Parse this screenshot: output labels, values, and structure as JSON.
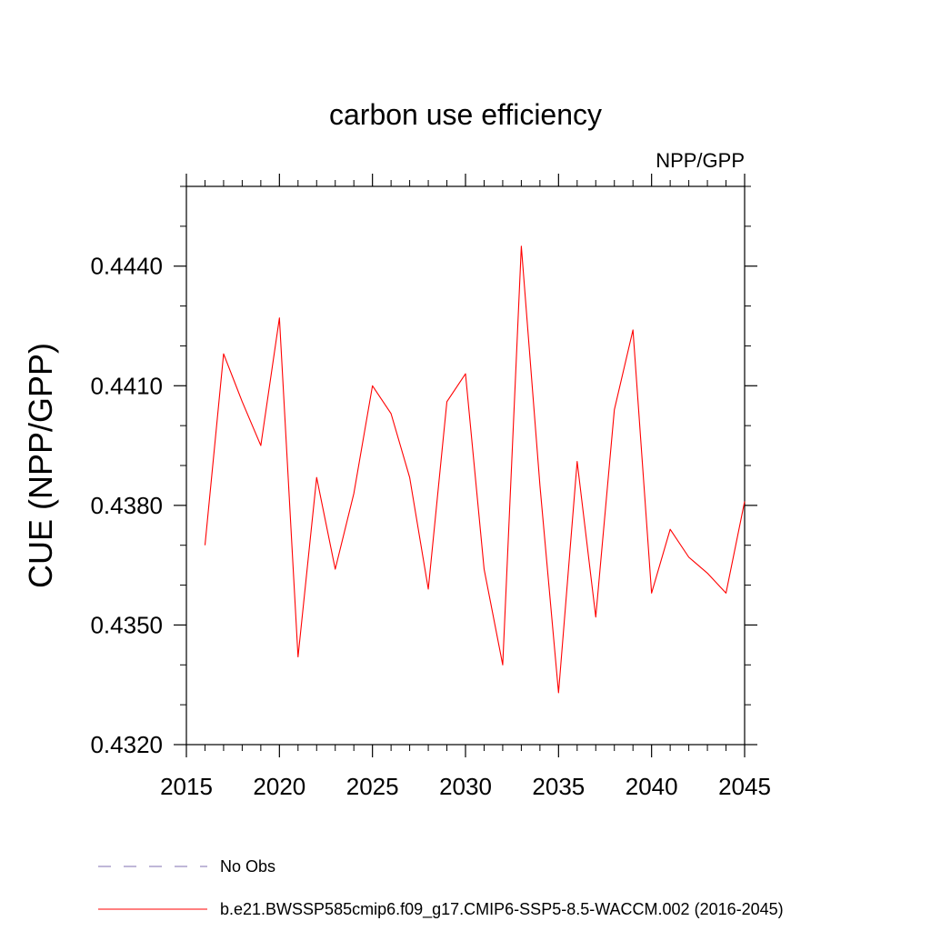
{
  "chart_data": {
    "type": "line",
    "title": "carbon use efficiency",
    "subtitle": "NPP/GPP",
    "xlabel": "",
    "ylabel": "CUE  (NPP/GPP)",
    "xlim": [
      2015,
      2045
    ],
    "ylim": [
      0.432,
      0.446
    ],
    "x_ticks": [
      2015,
      2020,
      2025,
      2030,
      2035,
      2040,
      2045
    ],
    "x_tick_labels": [
      "2015",
      "2020",
      "2025",
      "2030",
      "2035",
      "2040",
      "2045"
    ],
    "y_ticks": [
      0.432,
      0.435,
      0.438,
      0.441,
      0.444
    ],
    "y_tick_labels": [
      "0.4320",
      "0.4350",
      "0.4380",
      "0.4410",
      "0.4440"
    ],
    "grid": false,
    "legend_position": "bottom",
    "series": [
      {
        "name": "b.e21.BWSSP585cmip6.f09_g17.CMIP6-SSP5-8.5-WACCM.002 (2016-2045)",
        "color": "#ff0000",
        "style": "solid",
        "x": [
          2016,
          2017,
          2018,
          2019,
          2020,
          2021,
          2022,
          2023,
          2024,
          2025,
          2026,
          2027,
          2028,
          2029,
          2030,
          2031,
          2032,
          2033,
          2034,
          2035,
          2036,
          2037,
          2038,
          2039,
          2040,
          2041,
          2042,
          2043,
          2044,
          2045
        ],
        "values": [
          0.437,
          0.4418,
          0.4406,
          0.4395,
          0.4427,
          0.4342,
          0.4387,
          0.4364,
          0.4383,
          0.441,
          0.4403,
          0.4387,
          0.4359,
          0.4406,
          0.4413,
          0.4364,
          0.434,
          0.4445,
          0.4385,
          0.4333,
          0.4391,
          0.4352,
          0.4404,
          0.4424,
          0.4358,
          0.4374,
          0.4367,
          0.4363,
          0.4358,
          0.4381
        ]
      },
      {
        "name": "No Obs",
        "color": "#7f6fb0",
        "style": "dashed",
        "x": [],
        "values": []
      }
    ]
  }
}
